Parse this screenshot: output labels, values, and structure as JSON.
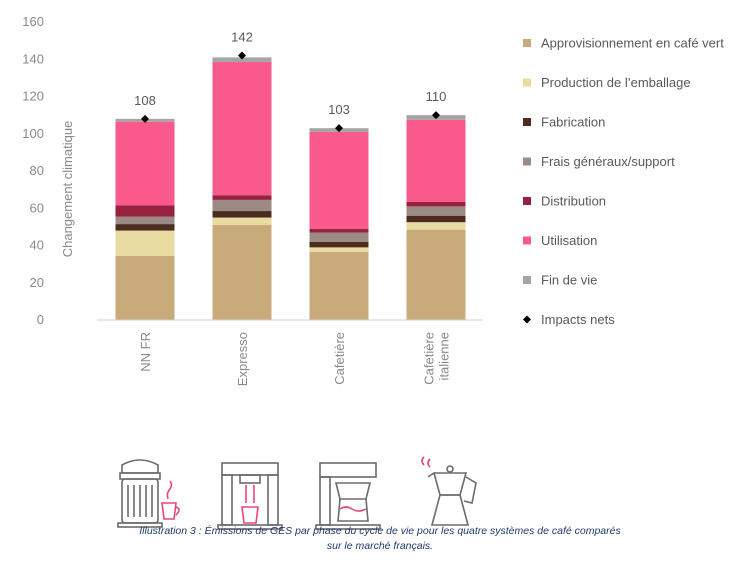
{
  "chart_data": {
    "type": "bar",
    "stacked": true,
    "title": "",
    "xlabel": "",
    "ylabel": "Changement climatique",
    "ylim": [
      0,
      160
    ],
    "yticks": [
      0,
      20,
      40,
      60,
      80,
      100,
      120,
      140,
      160
    ],
    "grid": false,
    "legend_position": "right",
    "categories": [
      "NN FR",
      "Expresso",
      "Cafetière",
      "Cafetière italienne"
    ],
    "category_lines": [
      [
        "NN FR"
      ],
      [
        "Expresso"
      ],
      [
        "Cafetière"
      ],
      [
        "Cafetière",
        "italienne"
      ]
    ],
    "series": [
      {
        "name": "Approvisionnement en café vert",
        "color": "#c9ab7b",
        "values": [
          34.5,
          51,
          36.5,
          48.5
        ]
      },
      {
        "name": "Production de l’emballage",
        "color": "#e7dba2",
        "values": [
          13.5,
          4,
          2.5,
          4
        ]
      },
      {
        "name": "Fabrication",
        "color": "#4b2c1e",
        "values": [
          3.5,
          3.5,
          3,
          3.5
        ]
      },
      {
        "name": "Frais généraux/support",
        "color": "#9c8a85",
        "values": [
          4,
          6,
          5,
          5
        ]
      },
      {
        "name": "Distribution",
        "color": "#97213f",
        "values": [
          6,
          2.5,
          2,
          2.5
        ]
      },
      {
        "name": "Utilisation",
        "color": "#fa5a8b",
        "values": [
          45,
          71.5,
          52,
          44
        ]
      },
      {
        "name": "Fin de vie",
        "color": "#a5a5a5",
        "values": [
          1.5,
          2.5,
          2,
          2.5
        ]
      }
    ],
    "net_impacts": {
      "name": "Impacts nets",
      "color": "#000000",
      "values": [
        108,
        142,
        103,
        110
      ],
      "labels": [
        "108",
        "142",
        "103",
        "110"
      ]
    }
  },
  "caption": {
    "line1": "Illustration 3 : Émissions de GES par phase du cycle de vie pour les quatre systèmes de café comparés",
    "line2": "sur le marché français."
  },
  "icons": {
    "capsule_machine": "capsule-coffee-machine-icon",
    "espresso_machine": "espresso-machine-icon",
    "filter_machine": "filter-coffee-maker-icon",
    "moka_pot": "moka-pot-icon",
    "accent_color": "#e8467a",
    "line_color": "#6b6b6b"
  }
}
